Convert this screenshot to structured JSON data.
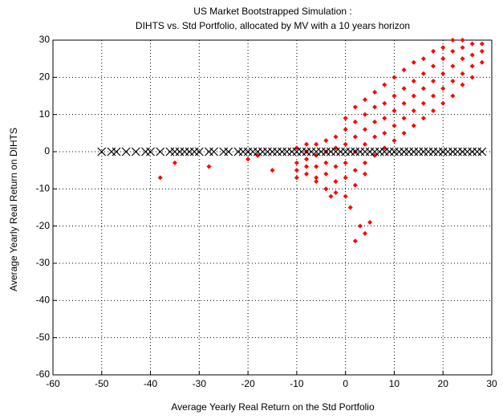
{
  "chart_data": {
    "type": "scatter",
    "title": "US Market Bootstrapped Simulation :",
    "subtitle": "DIHTS vs. Std Portfolio, allocated by MV with a 10 years horizon",
    "x_label": "Average Yearly Real Return on the Std Portfolio",
    "y_label": "Average Yearly Real Return on DIHTS",
    "xlim": [
      -60,
      30
    ],
    "ylim": [
      -60,
      30
    ],
    "xticks": [
      -60,
      -50,
      -40,
      -30,
      -20,
      -10,
      0,
      10,
      20,
      30
    ],
    "yticks": [
      -60,
      -50,
      -40,
      -30,
      -20,
      -10,
      0,
      10,
      20,
      30
    ],
    "grid": true,
    "series": [
      {
        "color": "#ff0000",
        "marker": "diamond",
        "x": [
          -10,
          -10,
          -10,
          -10,
          -8,
          -8,
          -8,
          -8,
          -8,
          -6,
          -6,
          -6,
          -6,
          -6,
          -4,
          -4,
          -4,
          -4,
          -4,
          -2,
          -2,
          -2,
          -2,
          -2,
          0,
          0,
          0,
          0,
          0,
          0,
          2,
          2,
          2,
          2,
          2,
          2,
          4,
          4,
          4,
          4,
          4,
          4,
          6,
          6,
          6,
          6,
          6,
          8,
          8,
          8,
          8,
          8,
          10,
          10,
          10,
          10,
          10,
          12,
          12,
          12,
          12,
          12,
          14,
          14,
          14,
          14,
          14,
          16,
          16,
          16,
          16,
          16,
          18,
          18,
          18,
          18,
          18,
          20,
          20,
          20,
          20,
          20,
          22,
          22,
          22,
          22,
          22,
          24,
          24,
          24,
          24,
          24,
          26,
          26,
          26,
          26,
          28,
          28,
          28,
          -38,
          -35,
          -28,
          -20,
          -15,
          -18,
          3,
          4,
          2,
          5,
          -3,
          1
        ],
        "values": [
          -3,
          -5,
          -7,
          1,
          -6,
          -2,
          0,
          2,
          -4,
          -4,
          -7,
          -1,
          2,
          -8,
          -6,
          -3,
          0,
          3,
          -10,
          -8,
          -4,
          1,
          4,
          -11,
          -7,
          -3,
          2,
          6,
          -12,
          9,
          -5,
          0,
          4,
          8,
          -9,
          12,
          -3,
          2,
          6,
          10,
          14,
          -6,
          -1,
          4,
          8,
          12,
          16,
          1,
          5,
          9,
          13,
          18,
          3,
          7,
          11,
          15,
          20,
          5,
          9,
          13,
          17,
          22,
          7,
          11,
          15,
          19,
          24,
          9,
          13,
          17,
          21,
          25,
          11,
          15,
          19,
          23,
          27,
          13,
          17,
          21,
          25,
          28,
          15,
          19,
          23,
          27,
          30,
          18,
          21,
          25,
          28,
          30,
          20,
          23,
          26,
          29,
          24,
          27,
          29,
          -7,
          -3,
          -4,
          -2,
          -5,
          -1,
          -20,
          -22,
          -24,
          -19,
          -12,
          -15
        ]
      },
      {
        "color": "#000000",
        "marker": "x",
        "x": [
          -50,
          -48,
          -47,
          -45,
          -43,
          -41,
          -40,
          -38,
          -36,
          -35,
          -34,
          -33,
          -32,
          -31,
          -30,
          -28,
          -27,
          -25,
          -24,
          -22,
          -21,
          -20,
          -19,
          -18,
          -17,
          -16,
          -15,
          -14,
          -13,
          -12,
          -11,
          -10,
          -9,
          -8,
          -7,
          -6,
          -5,
          -4,
          -3,
          -2,
          -1,
          0,
          1,
          2,
          3,
          4,
          5,
          6,
          7,
          8,
          9,
          10,
          11,
          12,
          13,
          14,
          15,
          16,
          17,
          18,
          19,
          20,
          21,
          22,
          23,
          24,
          25,
          26,
          27,
          28
        ],
        "values": [
          0,
          0,
          0,
          0,
          0,
          0,
          0,
          0,
          0,
          0,
          0,
          0,
          0,
          0,
          0,
          0,
          0,
          0,
          0,
          0,
          0,
          0,
          0,
          0,
          0,
          0,
          0,
          0,
          0,
          0,
          0,
          0,
          0,
          0,
          0,
          0,
          0,
          0,
          0,
          0,
          0,
          0,
          0,
          0,
          0,
          0,
          0,
          0,
          0,
          0,
          0,
          0,
          0,
          0,
          0,
          0,
          0,
          0,
          0,
          0,
          0,
          0,
          0,
          0,
          0,
          0,
          0,
          0,
          0,
          0
        ]
      }
    ]
  }
}
